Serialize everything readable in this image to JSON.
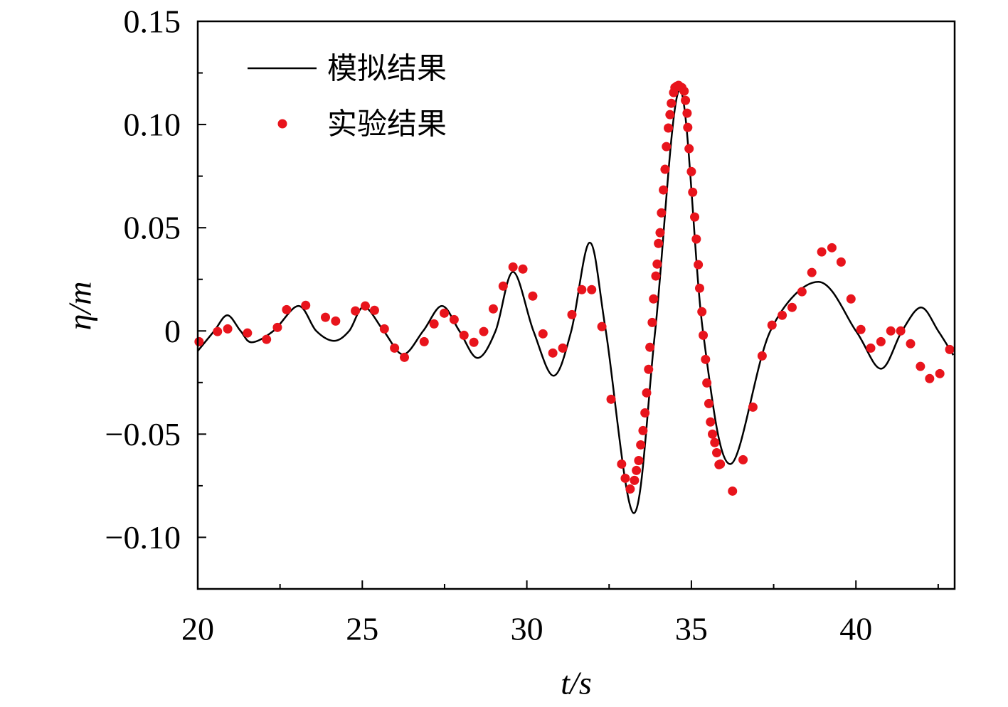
{
  "chart_data": {
    "type": "line-scatter",
    "xlabel": "t/s",
    "ylabel": "η/m",
    "xlim": [
      20,
      43
    ],
    "ylim": [
      -0.125,
      0.15
    ],
    "xticks": [
      20,
      25,
      30,
      35,
      40
    ],
    "yticks": [
      {
        "value": -0.1,
        "label": "−0.10"
      },
      {
        "value": -0.05,
        "label": "−0.05"
      },
      0,
      0.05,
      {
        "value": 0.1,
        "label": "0.10"
      },
      0.15
    ],
    "grid": false,
    "legend": "upper left",
    "series": [
      {
        "name": "模拟结果",
        "type": "line",
        "color": "#000000",
        "x": [
          20.0,
          20.5,
          20.9,
          21.3,
          21.64,
          22.3,
          23.06,
          23.6,
          24.14,
          24.6,
          25.05,
          25.65,
          26.24,
          26.85,
          27.42,
          27.95,
          28.5,
          29.05,
          29.58,
          30.2,
          30.81,
          31.35,
          31.91,
          32.4,
          33.25,
          33.9,
          34.65,
          35.35,
          36.18,
          37.4,
          38.86,
          40.0,
          40.76,
          41.4,
          41.98,
          42.5,
          42.96
        ],
        "values": [
          -0.0097,
          0,
          0.0076,
          0,
          -0.0055,
          0,
          0.0121,
          0,
          -0.0048,
          0,
          0.0117,
          0,
          -0.0114,
          0,
          0.0121,
          0,
          -0.0131,
          0,
          0.0286,
          0,
          -0.0217,
          0,
          0.0428,
          0,
          -0.0883,
          0,
          0.1169,
          0,
          -0.0645,
          0,
          0.0238,
          0,
          -0.0183,
          0,
          0.0114,
          0,
          -0.0117
        ]
      },
      {
        "name": "实验结果",
        "type": "scatter",
        "color": "#e8141c",
        "x": [
          20.04,
          20.6,
          20.91,
          21.51,
          22.09,
          22.42,
          22.7,
          23.28,
          23.88,
          24.19,
          24.79,
          25.09,
          25.37,
          25.67,
          25.98,
          26.28,
          26.88,
          27.18,
          27.49,
          27.79,
          28.09,
          28.39,
          28.69,
          28.98,
          29.28,
          29.58,
          29.88,
          30.18,
          30.49,
          30.79,
          31.09,
          31.37,
          31.67,
          31.97,
          32.28,
          32.56,
          32.88,
          32.99,
          33.14,
          33.27,
          33.33,
          33.4,
          33.46,
          33.53,
          33.59,
          33.64,
          33.7,
          33.74,
          33.81,
          33.85,
          33.92,
          33.96,
          34.0,
          34.05,
          34.09,
          34.15,
          34.2,
          34.24,
          34.3,
          34.35,
          34.39,
          34.46,
          34.5,
          34.56,
          34.61,
          34.65,
          34.71,
          34.78,
          34.82,
          34.87,
          34.89,
          34.93,
          35.0,
          35.04,
          35.1,
          35.15,
          35.21,
          35.25,
          35.32,
          35.36,
          35.43,
          35.47,
          35.53,
          35.58,
          35.64,
          35.71,
          35.77,
          35.84,
          35.88,
          36.25,
          36.57,
          36.87,
          37.15,
          37.45,
          37.76,
          38.06,
          38.36,
          38.66,
          38.96,
          39.27,
          39.55,
          39.85,
          40.15,
          40.45,
          40.76,
          41.06,
          41.36,
          41.66,
          41.96,
          42.24,
          42.55,
          42.85
        ],
        "values": [
          -0.0052,
          -0.0003,
          0.001,
          -0.001,
          -0.0041,
          0.0017,
          0.0103,
          0.0124,
          0.0066,
          0.0048,
          0.0097,
          0.0121,
          0.01,
          0.001,
          -0.0083,
          -0.0128,
          -0.0052,
          0.0034,
          0.0086,
          0.0055,
          -0.0021,
          -0.0055,
          -0.0003,
          0.0107,
          0.0217,
          0.031,
          0.03,
          0.0169,
          -0.0014,
          -0.0107,
          -0.0083,
          0.0079,
          0.02,
          0.02,
          0.0021,
          -0.0331,
          -0.0645,
          -0.0714,
          -0.0766,
          -0.0724,
          -0.0676,
          -0.0628,
          -0.0552,
          -0.0483,
          -0.0397,
          -0.03,
          -0.0186,
          -0.0079,
          0.0041,
          0.0155,
          0.0266,
          0.0324,
          0.0424,
          0.0476,
          0.0572,
          0.0683,
          0.0783,
          0.0893,
          0.0983,
          0.1048,
          0.1103,
          0.1155,
          0.1179,
          0.1186,
          0.119,
          0.1183,
          0.1179,
          0.1162,
          0.1117,
          0.1055,
          0.0986,
          0.0883,
          0.0772,
          0.0672,
          0.0552,
          0.0445,
          0.0321,
          0.0207,
          0.0093,
          -0.0021,
          -0.0138,
          -0.0252,
          -0.0352,
          -0.0441,
          -0.05,
          -0.0541,
          -0.059,
          -0.0648,
          -0.0645,
          -0.0776,
          -0.0624,
          -0.0369,
          -0.0121,
          0.0028,
          0.0076,
          0.0114,
          0.019,
          0.0283,
          0.0383,
          0.0403,
          0.0334,
          0.0155,
          0.0007,
          -0.0083,
          -0.0052,
          0,
          0,
          -0.0062,
          -0.0172,
          -0.0231,
          -0.0207,
          -0.009
        ]
      }
    ]
  }
}
